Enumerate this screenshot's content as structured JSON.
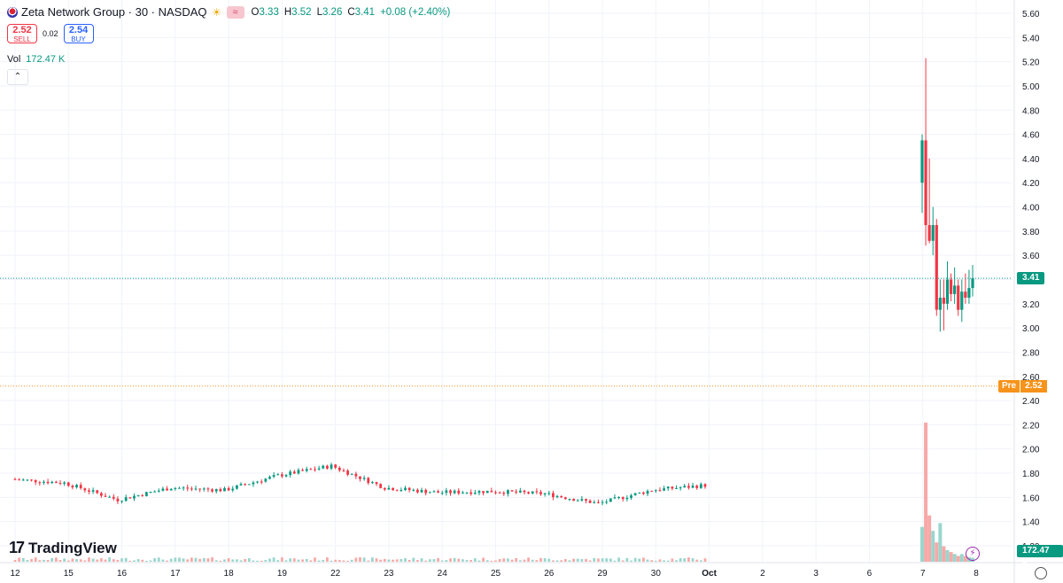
{
  "header": {
    "title": "Zeta Network Group · 30 · NASDAQ",
    "ohlc": {
      "o_label": "O",
      "o": "3.33",
      "h_label": "H",
      "h": "3.52",
      "l_label": "L",
      "l": "3.26",
      "c_label": "C",
      "c": "3.41",
      "change": "+0.08 (+2.40%)"
    }
  },
  "trade": {
    "sell_price": "2.52",
    "sell_label": "SELL",
    "spread": "0.02",
    "buy_price": "2.54",
    "buy_label": "BUY"
  },
  "volume": {
    "label": "Vol",
    "value": "172.47 K"
  },
  "brand": {
    "name": "TradingView"
  },
  "colors": {
    "up": "#089981",
    "down": "#f23645",
    "up_vol": "#9ad6cd",
    "down_vol": "#f7a9a7",
    "pre": "#f7931a"
  },
  "chart_data": {
    "type": "candlestick",
    "ylim": [
      1.3,
      5.6
    ],
    "y_ticks": [
      "5.60",
      "5.40",
      "5.20",
      "5.00",
      "4.80",
      "4.60",
      "4.40",
      "4.20",
      "4.00",
      "3.80",
      "3.60",
      "3.40",
      "3.20",
      "3.00",
      "2.80",
      "2.60",
      "2.40",
      "2.20",
      "2.00",
      "1.80",
      "1.60",
      "1.40",
      "1.20"
    ],
    "x_ticks": [
      "12",
      "15",
      "16",
      "17",
      "18",
      "19",
      "22",
      "23",
      "24",
      "25",
      "26",
      "29",
      "30",
      "Oct",
      "2",
      "3",
      "6",
      "7",
      "8"
    ],
    "last_price": {
      "value": 3.41,
      "label": "3.41"
    },
    "pre_market": {
      "value": 2.52,
      "label": "2.52",
      "tag": "Pre"
    },
    "volume_axis_label": "172.47 K",
    "daily_closes": [
      1.75,
      1.72,
      1.58,
      1.68,
      1.66,
      1.78,
      1.86,
      1.68,
      1.64,
      1.65,
      1.63,
      1.55,
      1.66,
      1.7
    ],
    "final_session": [
      {
        "o": 4.2,
        "h": 4.6,
        "l": 3.95,
        "c": 4.55
      },
      {
        "o": 4.55,
        "h": 5.23,
        "l": 3.68,
        "c": 3.85
      },
      {
        "o": 3.85,
        "h": 4.4,
        "l": 3.7,
        "c": 3.72
      },
      {
        "o": 3.72,
        "h": 4.0,
        "l": 3.6,
        "c": 3.85
      },
      {
        "o": 3.85,
        "h": 3.9,
        "l": 3.1,
        "c": 3.15
      },
      {
        "o": 3.15,
        "h": 3.4,
        "l": 2.97,
        "c": 3.25
      },
      {
        "o": 3.25,
        "h": 3.4,
        "l": 2.98,
        "c": 3.2
      },
      {
        "o": 3.2,
        "h": 3.55,
        "l": 3.15,
        "c": 3.4
      },
      {
        "o": 3.4,
        "h": 3.45,
        "l": 3.22,
        "c": 3.28
      },
      {
        "o": 3.28,
        "h": 3.5,
        "l": 3.2,
        "c": 3.35
      },
      {
        "o": 3.35,
        "h": 3.4,
        "l": 3.1,
        "c": 3.15
      },
      {
        "o": 3.15,
        "h": 3.4,
        "l": 3.05,
        "c": 3.3
      },
      {
        "o": 3.3,
        "h": 3.45,
        "l": 3.2,
        "c": 3.25
      },
      {
        "o": 3.25,
        "h": 3.48,
        "l": 3.2,
        "c": 3.33
      },
      {
        "o": 3.33,
        "h": 3.52,
        "l": 3.26,
        "c": 3.41
      }
    ],
    "final_session_volume": [
      0.9,
      3.6,
      1.2,
      0.8,
      0.5,
      1.0,
      0.4,
      0.3,
      0.25,
      0.2,
      0.15,
      0.2,
      0.15,
      0.12,
      0.1
    ]
  }
}
